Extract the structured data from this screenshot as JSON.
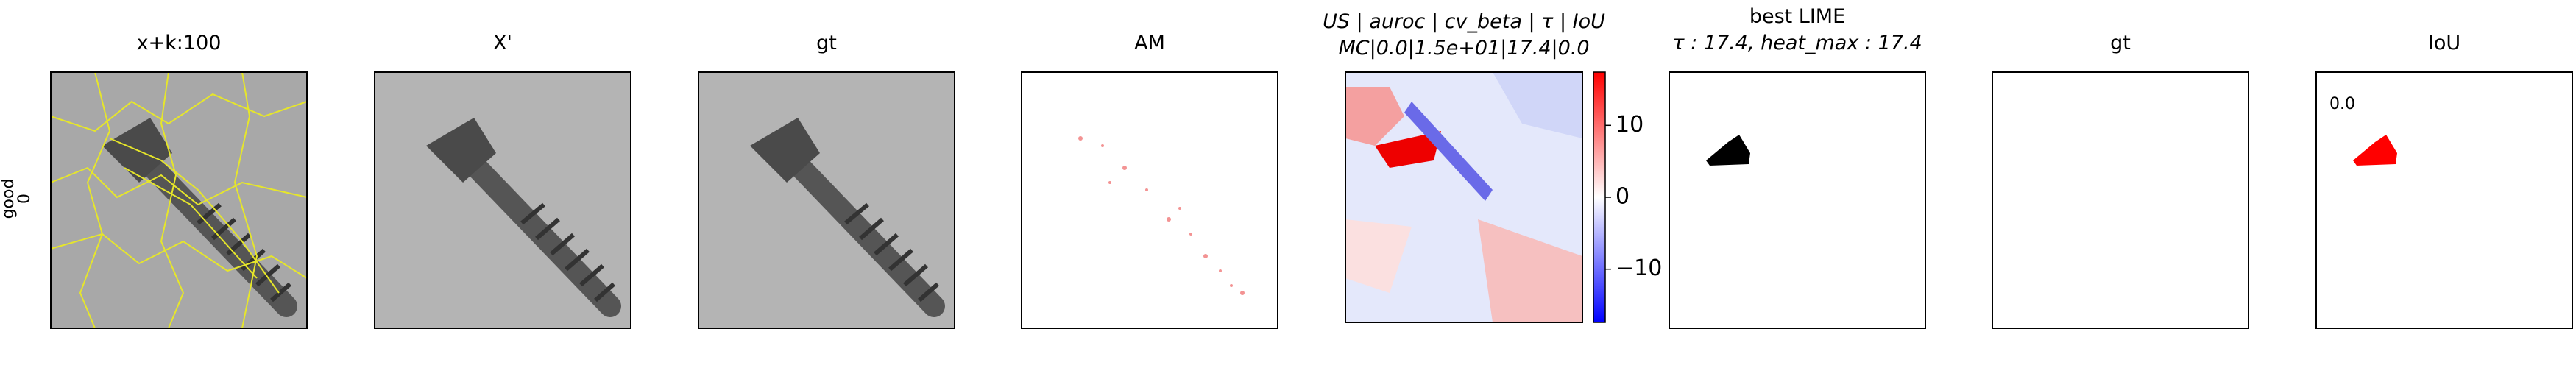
{
  "row_label": [
    "good",
    "0"
  ],
  "panels": [
    {
      "title": "x+k:100"
    },
    {
      "title": "X'"
    },
    {
      "title": "gt"
    },
    {
      "title": "AM"
    },
    {
      "title": [
        "US | auroc | cv_beta | τ | IoU",
        "MC|0.0|1.5e+01|17.4|0.0"
      ]
    },
    {
      "title": [
        "best LIME",
        "τ : 17.4, heat_max : 17.4"
      ]
    },
    {
      "title": "gt"
    },
    {
      "title": "IoU",
      "annotation": "0.0"
    }
  ],
  "colorbar": {
    "ylim": [
      -17.4,
      17.4
    ],
    "yticks": [
      {
        "value": -10,
        "label": "−10"
      },
      0,
      10
    ]
  }
}
